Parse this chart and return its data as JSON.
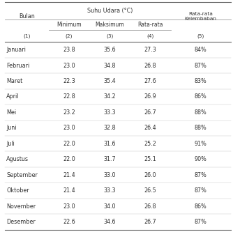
{
  "months": [
    "Januari",
    "Februari",
    "Maret",
    "April",
    "Mei",
    "Juni",
    "Juli",
    "Agustus",
    "September",
    "Oktober",
    "November",
    "Desember"
  ],
  "minimum": [
    "23.8",
    "23.0",
    "22.3",
    "22.8",
    "23.2",
    "23.0",
    "22.0",
    "22.0",
    "21.4",
    "21.4",
    "23.0",
    "22.6"
  ],
  "maksimum": [
    "35.6",
    "34.8",
    "35.4",
    "34.2",
    "33.3",
    "32.8",
    "31.6",
    "31.7",
    "33.0",
    "33.3",
    "34.0",
    "34.6"
  ],
  "rata_rata": [
    "27.3",
    "26.8",
    "27.6",
    "26.9",
    "26.7",
    "26.4",
    "25.2",
    "25.1",
    "26.0",
    "26.5",
    "26.8",
    "26.7"
  ],
  "kelembaban": [
    "84%",
    "87%",
    "83%",
    "86%",
    "88%",
    "88%",
    "91%",
    "90%",
    "87%",
    "87%",
    "86%",
    "87%"
  ],
  "background_color": "#ffffff",
  "line_color": "#999999",
  "text_color": "#333333",
  "font_size": 5.8,
  "header_font_size": 5.8
}
